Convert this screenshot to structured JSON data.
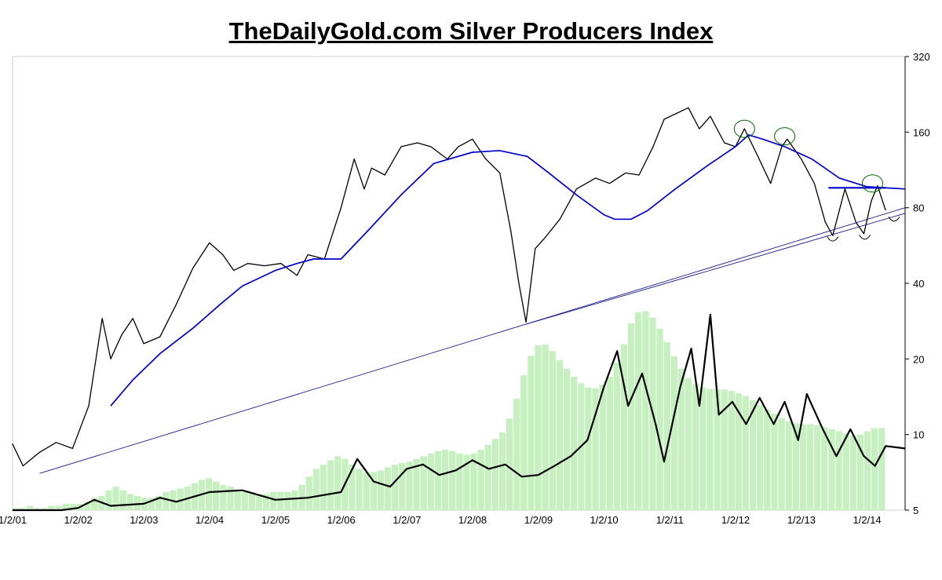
{
  "chart_data": {
    "type": "line",
    "title": "TheDailyGold.com Silver Producers Index",
    "y_scale": "log",
    "ylim": [
      5,
      320
    ],
    "yticks": [
      5,
      10,
      20,
      40,
      80,
      160,
      320
    ],
    "ytick_labels": [
      "5",
      "10",
      "20",
      "40",
      "80",
      "160",
      "320"
    ],
    "x_range": [
      "2001-01-02",
      "2014-08-01"
    ],
    "xticks": [
      "2001-01-02",
      "2002-01-02",
      "2003-01-02",
      "2004-01-02",
      "2005-01-02",
      "2006-01-02",
      "2007-01-02",
      "2008-01-02",
      "2009-01-02",
      "2010-01-02",
      "2011-01-02",
      "2012-01-02",
      "2013-01-02",
      "2014-01-02"
    ],
    "xtick_labels": [
      "1/2/01",
      "1/2/02",
      "1/2/03",
      "1/2/04",
      "1/2/05",
      "1/2/06",
      "1/2/07",
      "1/2/08",
      "1/2/09",
      "1/2/10",
      "1/2/11",
      "1/2/12",
      "1/2/13",
      "1/2/14"
    ],
    "grid": false,
    "series": [
      {
        "role": "price",
        "color": "#000000",
        "x": [
          "2001-01-01",
          "2001-03-01",
          "2001-06-01",
          "2001-09-01",
          "2001-12-01",
          "2002-03-01",
          "2002-05-15",
          "2002-07-01",
          "2002-09-01",
          "2002-11-01",
          "2003-01-01",
          "2003-04-01",
          "2003-07-01",
          "2003-10-01",
          "2004-01-01",
          "2004-03-15",
          "2004-05-15",
          "2004-08-01",
          "2004-11-01",
          "2005-02-01",
          "2005-05-01",
          "2005-07-01",
          "2005-10-01",
          "2006-01-01",
          "2006-03-15",
          "2006-05-10",
          "2006-06-20",
          "2006-09-01",
          "2006-12-01",
          "2007-03-01",
          "2007-05-15",
          "2007-08-15",
          "2007-10-15",
          "2008-01-01",
          "2008-03-15",
          "2008-06-01",
          "2008-08-01",
          "2008-09-15",
          "2008-10-25",
          "2008-12-15",
          "2009-02-01",
          "2009-05-01",
          "2009-08-01",
          "2009-11-15",
          "2010-02-01",
          "2010-05-01",
          "2010-07-15",
          "2010-10-01",
          "2010-12-01",
          "2011-04-15",
          "2011-06-15",
          "2011-08-15",
          "2011-11-01",
          "2012-01-01",
          "2012-02-20",
          "2012-05-01",
          "2012-07-15",
          "2012-09-15",
          "2012-10-15",
          "2013-01-01",
          "2013-03-15",
          "2013-05-15",
          "2013-06-25",
          "2013-09-01",
          "2013-11-01",
          "2013-12-15",
          "2014-01-25",
          "2014-03-01",
          "2014-04-15"
        ],
        "values": [
          9.2,
          7.5,
          8.5,
          9.3,
          8.8,
          13.0,
          29.0,
          20.0,
          25.0,
          29.0,
          23.0,
          24.5,
          33.0,
          46.0,
          58.0,
          52.0,
          45.0,
          48.0,
          47.0,
          48.0,
          43.0,
          52.0,
          50.0,
          80.0,
          125.0,
          95.0,
          115.0,
          108.0,
          140.0,
          145.0,
          140.0,
          125.0,
          140.0,
          150.0,
          125.0,
          110.0,
          65.0,
          40.0,
          28.0,
          55.0,
          60.0,
          72.0,
          95.0,
          105.0,
          100.0,
          110.0,
          108.0,
          140.0,
          180.0,
          200.0,
          165.0,
          185.0,
          145.0,
          140.0,
          165.0,
          130.0,
          100.0,
          140.0,
          150.0,
          125.0,
          100.0,
          70.0,
          62.0,
          95.0,
          70.0,
          63.0,
          85.0,
          98.0,
          78.0
        ]
      },
      {
        "role": "moving-average",
        "color": "#0000cc",
        "x": [
          "2002-07-01",
          "2002-11-01",
          "2003-04-01",
          "2003-10-01",
          "2004-03-01",
          "2004-07-01",
          "2005-01-01",
          "2005-05-01",
          "2005-08-01",
          "2006-01-01",
          "2006-06-01",
          "2006-12-01",
          "2007-06-01",
          "2008-01-01",
          "2008-06-01",
          "2008-11-01",
          "2009-03-01",
          "2009-08-01",
          "2010-01-01",
          "2010-03-01",
          "2010-06-01",
          "2010-09-01",
          "2011-02-01",
          "2011-08-01",
          "2012-01-01",
          "2012-03-15",
          "2012-06-01",
          "2012-10-01",
          "2013-03-01",
          "2013-08-01",
          "2014-01-01",
          "2014-08-01"
        ],
        "values": [
          13.0,
          16.5,
          21.0,
          26.5,
          33.0,
          39.0,
          45.0,
          48.0,
          50.0,
          50.0,
          65.0,
          90.0,
          120.0,
          133.0,
          135.0,
          128.0,
          110.0,
          90.0,
          75.0,
          72.0,
          72.0,
          78.0,
          95.0,
          118.0,
          140.0,
          156.0,
          150.0,
          140.0,
          125.0,
          105.0,
          97.0,
          95.0
        ]
      },
      {
        "role": "trendline",
        "color": "#1a1a8c",
        "x": [
          "2001-06-01",
          "2014-08-01"
        ],
        "values": [
          7.0,
          80.0
        ]
      },
      {
        "role": "trendline",
        "color": "#1a1a8c",
        "x": [
          "2008-10-25",
          "2014-08-01"
        ],
        "values": [
          27.5,
          76.0
        ]
      },
      {
        "role": "resistance",
        "color": "#0000cc",
        "x": [
          "2013-06-01",
          "2014-04-15"
        ],
        "values": [
          96.0,
          96.0
        ]
      },
      {
        "role": "volume-average",
        "color": "#000000",
        "x": [
          "2001-01-01",
          "2001-06-01",
          "2001-10-01",
          "2002-01-01",
          "2002-04-01",
          "2002-07-01",
          "2003-01-01",
          "2003-04-01",
          "2003-07-01",
          "2004-01-01",
          "2004-07-01",
          "2005-01-01",
          "2005-07-01",
          "2006-01-01",
          "2006-04-01",
          "2006-07-01",
          "2006-10-01",
          "2007-01-01",
          "2007-04-01",
          "2007-07-01",
          "2007-10-01",
          "2008-01-01",
          "2008-04-01",
          "2008-07-01",
          "2008-10-01",
          "2009-01-01",
          "2009-04-01",
          "2009-07-01",
          "2009-10-01",
          "2010-01-01",
          "2010-03-15",
          "2010-05-15",
          "2010-08-01",
          "2010-10-15",
          "2010-12-01",
          "2011-03-01",
          "2011-05-01",
          "2011-06-15",
          "2011-08-15",
          "2011-10-01",
          "2011-12-15",
          "2012-03-01",
          "2012-05-15",
          "2012-08-01",
          "2012-10-01",
          "2012-12-15",
          "2013-02-01",
          "2013-05-01",
          "2013-07-15",
          "2013-10-01",
          "2013-12-15",
          "2014-02-15",
          "2014-04-15",
          "2014-08-01"
        ],
        "values": [
          5.0,
          5.0,
          5.0,
          5.1,
          5.5,
          5.2,
          5.3,
          5.6,
          5.4,
          5.9,
          6.0,
          5.5,
          5.6,
          5.9,
          8.0,
          6.5,
          6.2,
          7.3,
          7.6,
          6.9,
          7.2,
          7.9,
          7.3,
          7.6,
          6.8,
          6.9,
          7.5,
          8.2,
          9.5,
          15.5,
          21.5,
          13.0,
          17.5,
          11.0,
          7.8,
          15.5,
          22.0,
          13.0,
          30.0,
          12.0,
          13.5,
          11.0,
          14.0,
          11.0,
          13.5,
          9.5,
          14.5,
          10.5,
          8.2,
          10.5,
          8.2,
          7.5,
          9.0,
          8.8
        ]
      }
    ],
    "volume_bars": {
      "color": "#c6f0c0",
      "x_range": [
        "2001-01-01",
        "2014-04-15"
      ],
      "values": [
        5.1,
        5.1,
        5.2,
        5.1,
        5.1,
        5.2,
        5.2,
        5.3,
        5.3,
        5.3,
        5.4,
        5.6,
        5.7,
        6.0,
        6.2,
        6.0,
        5.8,
        5.7,
        5.6,
        5.6,
        5.7,
        5.9,
        6.0,
        6.1,
        6.2,
        6.4,
        6.6,
        6.7,
        6.5,
        6.3,
        6.2,
        6.0,
        5.9,
        5.9,
        5.8,
        5.8,
        5.9,
        5.9,
        5.9,
        6.0,
        6.3,
        6.8,
        7.3,
        7.6,
        7.9,
        8.2,
        8.0,
        7.6,
        7.3,
        7.1,
        7.1,
        7.2,
        7.4,
        7.6,
        7.7,
        7.8,
        8.0,
        8.2,
        8.4,
        8.6,
        8.7,
        8.6,
        8.4,
        8.3,
        8.4,
        8.7,
        9.1,
        9.6,
        10.2,
        11.6,
        13.9,
        17.2,
        20.6,
        22.7,
        22.8,
        21.5,
        19.8,
        18.3,
        17.0,
        16.0,
        15.4,
        15.3,
        15.8,
        17.0,
        19.3,
        22.9,
        27.7,
        30.7,
        31.0,
        29.2,
        26.4,
        23.3,
        20.5,
        18.3,
        16.8,
        15.9,
        15.4,
        15.2,
        15.2,
        15.1,
        14.9,
        14.6,
        14.2,
        13.7,
        13.1,
        12.6,
        12.1,
        11.6,
        11.3,
        11.1,
        11.0,
        11.0,
        10.9,
        10.7,
        10.5,
        10.3,
        10.1,
        9.9,
        10.0,
        10.3,
        10.6,
        10.6
      ]
    },
    "annotations": [
      {
        "shape": "circle",
        "x": "2012-02-20",
        "value": 165,
        "color": "#006600"
      },
      {
        "shape": "circle",
        "x": "2012-10-01",
        "value": 154,
        "color": "#006600"
      },
      {
        "shape": "circle",
        "x": "2014-02-01",
        "value": 100,
        "color": "#006600"
      },
      {
        "shape": "arc",
        "x": "2013-06-25",
        "value": 60,
        "color": "#000000"
      },
      {
        "shape": "arc",
        "x": "2013-12-20",
        "value": 61,
        "color": "#000000"
      },
      {
        "shape": "arc",
        "x": "2014-06-01",
        "value": 72,
        "color": "#000000"
      }
    ]
  }
}
